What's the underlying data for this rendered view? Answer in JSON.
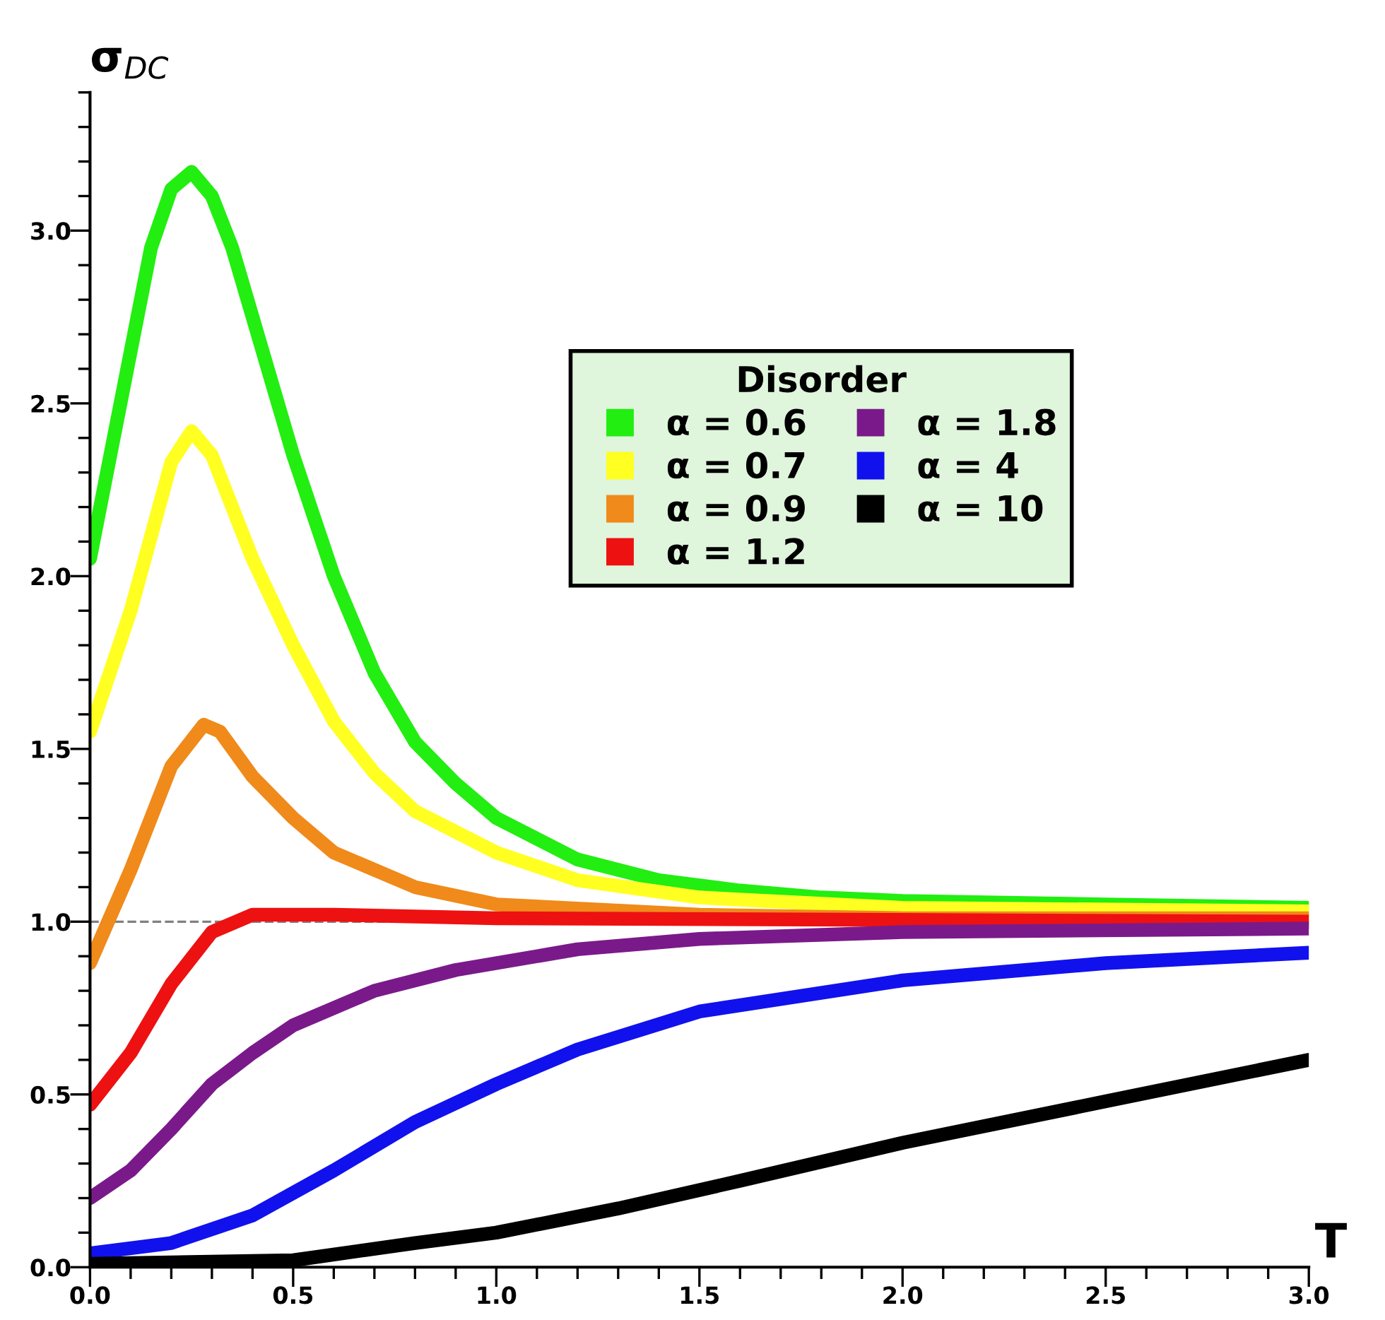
{
  "chart_data": {
    "type": "line",
    "xlabel": "T",
    "ylabel": "σ$_{DC}$",
    "legend_title": "Disorder",
    "legend": "center right",
    "grid": false,
    "marker": "none",
    "line_style": "solid",
    "xlim": [
      0,
      3.0
    ],
    "ylim": [
      0,
      3.4
    ],
    "xticks": [
      {
        "value": 0,
        "label": "0.0"
      },
      {
        "value": 0.1,
        "label": null
      },
      {
        "value": 0.2,
        "label": null
      },
      {
        "value": 0.3,
        "label": null
      },
      {
        "value": 0.4,
        "label": null
      },
      {
        "value": 0.5,
        "label": "0.5"
      },
      {
        "value": 0.6,
        "label": null
      },
      {
        "value": 0.7,
        "label": null
      },
      {
        "value": 0.8,
        "label": null
      },
      {
        "value": 0.9,
        "label": null
      },
      {
        "value": 1.0,
        "label": "1.0"
      },
      {
        "value": 1.1,
        "label": null
      },
      {
        "value": 1.2,
        "label": null
      },
      {
        "value": 1.3,
        "label": null
      },
      {
        "value": 1.4,
        "label": null
      },
      {
        "value": 1.5,
        "label": "1.5"
      },
      {
        "value": 1.6,
        "label": null
      },
      {
        "value": 1.7,
        "label": null
      },
      {
        "value": 1.8,
        "label": null
      },
      {
        "value": 1.9,
        "label": null
      },
      {
        "value": 2.0,
        "label": "2.0"
      },
      {
        "value": 2.1,
        "label": null
      },
      {
        "value": 2.2,
        "label": null
      },
      {
        "value": 2.3,
        "label": null
      },
      {
        "value": 2.4,
        "label": null
      },
      {
        "value": 2.5,
        "label": "2.5"
      },
      {
        "value": 2.6,
        "label": null
      },
      {
        "value": 2.7,
        "label": null
      },
      {
        "value": 2.8,
        "label": null
      },
      {
        "value": 2.9,
        "label": null
      },
      {
        "value": 3.0,
        "label": "3.0"
      }
    ],
    "yticks": [
      {
        "value": 0,
        "label": "0.0"
      },
      {
        "value": 0.1,
        "label": null
      },
      {
        "value": 0.2,
        "label": null
      },
      {
        "value": 0.3,
        "label": null
      },
      {
        "value": 0.4,
        "label": null
      },
      {
        "value": 0.5,
        "label": "0.5"
      },
      {
        "value": 0.6,
        "label": null
      },
      {
        "value": 0.7,
        "label": null
      },
      {
        "value": 0.8,
        "label": null
      },
      {
        "value": 0.9,
        "label": null
      },
      {
        "value": 1.0,
        "label": "1.0"
      },
      {
        "value": 1.1,
        "label": null
      },
      {
        "value": 1.2,
        "label": null
      },
      {
        "value": 1.3,
        "label": null
      },
      {
        "value": 1.4,
        "label": null
      },
      {
        "value": 1.5,
        "label": "1.5"
      },
      {
        "value": 1.6,
        "label": null
      },
      {
        "value": 1.7,
        "label": null
      },
      {
        "value": 1.8,
        "label": null
      },
      {
        "value": 1.9,
        "label": null
      },
      {
        "value": 2.0,
        "label": "2.0"
      },
      {
        "value": 2.1,
        "label": null
      },
      {
        "value": 2.2,
        "label": null
      },
      {
        "value": 2.3,
        "label": null
      },
      {
        "value": 2.4,
        "label": null
      },
      {
        "value": 2.5,
        "label": "2.5"
      },
      {
        "value": 2.6,
        "label": null
      },
      {
        "value": 2.7,
        "label": null
      },
      {
        "value": 2.8,
        "label": null
      },
      {
        "value": 2.9,
        "label": null
      },
      {
        "value": 3.0,
        "label": "3.0"
      },
      {
        "value": 3.1,
        "label": null
      },
      {
        "value": 3.2,
        "label": null
      },
      {
        "value": 3.3,
        "label": null
      },
      {
        "value": 3.4,
        "label": null
      }
    ],
    "ref_lines": [
      {
        "axis": "y",
        "value": 1.0,
        "color": "#808080",
        "line_style": "dashed"
      }
    ],
    "series": [
      {
        "name": "α = 0.6",
        "color": "#22ee11",
        "x": [
          0,
          0.05,
          0.1,
          0.15,
          0.2,
          0.25,
          0.3,
          0.35,
          0.4,
          0.5,
          0.6,
          0.7,
          0.8,
          0.9,
          1.0,
          1.2,
          1.4,
          1.6,
          1.8,
          2.0,
          2.5,
          3.0
        ],
        "values": [
          2.05,
          2.35,
          2.65,
          2.95,
          3.12,
          3.17,
          3.1,
          2.95,
          2.75,
          2.35,
          2.0,
          1.72,
          1.52,
          1.4,
          1.3,
          1.18,
          1.12,
          1.09,
          1.07,
          1.06,
          1.05,
          1.04
        ]
      },
      {
        "name": "α = 0.7",
        "color": "#ffff22",
        "x": [
          0,
          0.1,
          0.2,
          0.25,
          0.3,
          0.4,
          0.5,
          0.6,
          0.7,
          0.8,
          1.0,
          1.2,
          1.5,
          2.0,
          3.0
        ],
        "values": [
          1.55,
          1.9,
          2.33,
          2.42,
          2.35,
          2.05,
          1.8,
          1.58,
          1.43,
          1.32,
          1.2,
          1.12,
          1.07,
          1.04,
          1.03
        ]
      },
      {
        "name": "α = 0.9",
        "color": "#f08a1a",
        "x": [
          0,
          0.1,
          0.2,
          0.28,
          0.32,
          0.4,
          0.5,
          0.6,
          0.8,
          1.0,
          1.5,
          2.0,
          3.0
        ],
        "values": [
          0.88,
          1.15,
          1.45,
          1.57,
          1.55,
          1.42,
          1.3,
          1.2,
          1.1,
          1.05,
          1.02,
          1.01,
          1.01
        ]
      },
      {
        "name": "α = 1.2",
        "color": "#ee1111",
        "x": [
          0,
          0.1,
          0.2,
          0.3,
          0.4,
          0.6,
          1.0,
          3.0
        ],
        "values": [
          0.47,
          0.62,
          0.82,
          0.97,
          1.02,
          1.02,
          1.01,
          1.0
        ]
      },
      {
        "name": "α = 1.8",
        "color": "#7a1a8a",
        "x": [
          0,
          0.1,
          0.2,
          0.3,
          0.4,
          0.5,
          0.7,
          0.9,
          1.2,
          1.5,
          2.0,
          3.0
        ],
        "values": [
          0.2,
          0.28,
          0.4,
          0.53,
          0.62,
          0.7,
          0.8,
          0.86,
          0.92,
          0.95,
          0.97,
          0.98
        ]
      },
      {
        "name": "α = 4",
        "color": "#1111ee",
        "x": [
          0,
          0.2,
          0.4,
          0.6,
          0.8,
          1.0,
          1.2,
          1.5,
          2.0,
          2.5,
          3.0
        ],
        "values": [
          0.04,
          0.07,
          0.15,
          0.28,
          0.42,
          0.53,
          0.63,
          0.74,
          0.83,
          0.88,
          0.91
        ]
      },
      {
        "name": "α = 10",
        "color": "#000000",
        "x": [
          0,
          0.5,
          0.8,
          1.0,
          1.3,
          1.6,
          2.0,
          2.5,
          3.0
        ],
        "values": [
          0.01,
          0.02,
          0.07,
          0.1,
          0.17,
          0.25,
          0.36,
          0.48,
          0.6
        ]
      }
    ]
  }
}
